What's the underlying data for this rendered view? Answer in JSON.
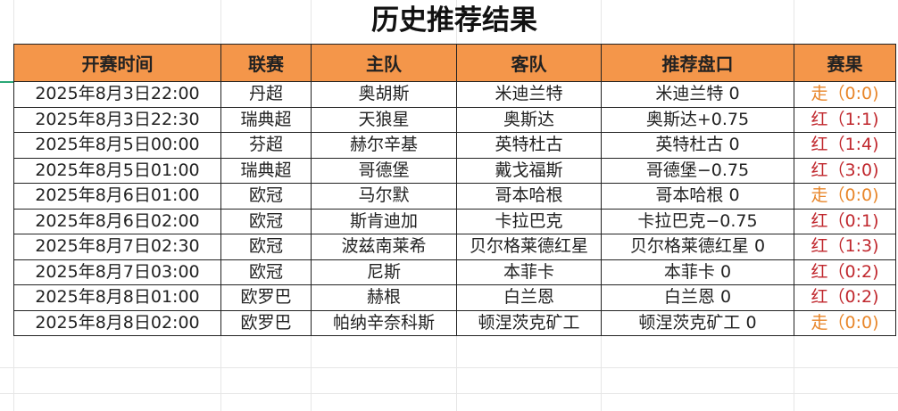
{
  "title": "历史推荐结果",
  "colors": {
    "header_bg": "#f4964a",
    "win": "#c0272d",
    "push": "#e8862a"
  },
  "columns": [
    "开赛时间",
    "联赛",
    "主队",
    "客队",
    "推荐盘口",
    "赛果"
  ],
  "rows": [
    {
      "time": "2025年8月3日22:00",
      "league": "丹超",
      "home": "奥胡斯",
      "away": "米迪兰特",
      "pick": "米迪兰特 0",
      "result": "走（0:0)",
      "status": "push"
    },
    {
      "time": "2025年8月3日22:30",
      "league": "瑞典超",
      "home": "天狼星",
      "away": "奥斯达",
      "pick": "奥斯达+0.75",
      "result": "红（1:1)",
      "status": "win"
    },
    {
      "time": "2025年8月5日00:00",
      "league": "芬超",
      "home": "赫尔辛基",
      "away": "英特杜古",
      "pick": "英特杜古 0",
      "result": "红（1:4)",
      "status": "win"
    },
    {
      "time": "2025年8月5日01:00",
      "league": "瑞典超",
      "home": "哥德堡",
      "away": "戴戈福斯",
      "pick": "哥德堡−0.75",
      "result": "红（3:0)",
      "status": "win"
    },
    {
      "time": "2025年8月6日01:00",
      "league": "欧冠",
      "home": "马尔默",
      "away": "哥本哈根",
      "pick": "哥本哈根 0",
      "result": "走（0:0)",
      "status": "push"
    },
    {
      "time": "2025年8月6日02:00",
      "league": "欧冠",
      "home": "斯肯迪加",
      "away": "卡拉巴克",
      "pick": "卡拉巴克−0.75",
      "result": "红（0:1)",
      "status": "win"
    },
    {
      "time": "2025年8月7日02:30",
      "league": "欧冠",
      "home": "波兹南莱希",
      "away": "贝尔格莱德红星",
      "pick": "贝尔格莱德红星 0",
      "result": "红（1:3)",
      "status": "win"
    },
    {
      "time": "2025年8月7日03:00",
      "league": "欧冠",
      "home": "尼斯",
      "away": "本菲卡",
      "pick": "本菲卡 0",
      "result": "红（0:2)",
      "status": "win"
    },
    {
      "time": "2025年8月8日01:00",
      "league": "欧罗巴",
      "home": "赫根",
      "away": "白兰恩",
      "pick": "白兰恩 0",
      "result": "红（0:2)",
      "status": "win"
    },
    {
      "time": "2025年8月8日02:00",
      "league": "欧罗巴",
      "home": "帕纳辛奈科斯",
      "away": "顿涅茨克矿工",
      "pick": "顿涅茨克矿工 0",
      "result": "走（0:0)",
      "status": "push"
    }
  ]
}
